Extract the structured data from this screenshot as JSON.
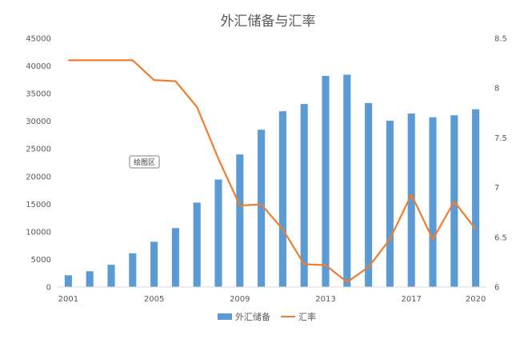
{
  "chart_data": {
    "type": "bar+line",
    "title": "外汇储备与汇率",
    "x": [
      2001,
      2002,
      2003,
      2004,
      2005,
      2006,
      2007,
      2008,
      2009,
      2010,
      2011,
      2012,
      2013,
      2014,
      2015,
      2016,
      2017,
      2018,
      2019,
      2020
    ],
    "x_tick_labels": [
      "2001",
      "2005",
      "2009",
      "2013",
      "2017",
      "2020"
    ],
    "x_tick_years": [
      2001,
      2005,
      2009,
      2013,
      2017,
      2020
    ],
    "series": [
      {
        "name": "外汇储备",
        "type": "bar",
        "axis": "left",
        "color": "#5b9bd5",
        "values": [
          2122,
          2864,
          4033,
          6099,
          8189,
          10663,
          15282,
          19460,
          23992,
          28473,
          31811,
          33116,
          38213,
          38430,
          33304,
          30105,
          31399,
          30727,
          31079,
          32165
        ]
      },
      {
        "name": "汇率",
        "type": "line",
        "axis": "right",
        "color": "#ed7d31",
        "values": [
          8.28,
          8.28,
          8.28,
          8.28,
          8.08,
          8.07,
          7.81,
          7.29,
          6.82,
          6.83,
          6.58,
          6.23,
          6.22,
          6.05,
          6.2,
          6.48,
          6.93,
          6.48,
          6.86,
          6.58
        ]
      }
    ],
    "y_left": {
      "min": 0,
      "max": 45000,
      "ticks": [
        0,
        5000,
        10000,
        15000,
        20000,
        25000,
        30000,
        35000,
        40000,
        45000
      ]
    },
    "y_right": {
      "min": 6,
      "max": 8.5,
      "ticks": [
        "6",
        "6.5",
        "7",
        "7.5",
        "8",
        "8.5"
      ]
    },
    "legend_position": "bottom",
    "annotation": "绘图区"
  }
}
